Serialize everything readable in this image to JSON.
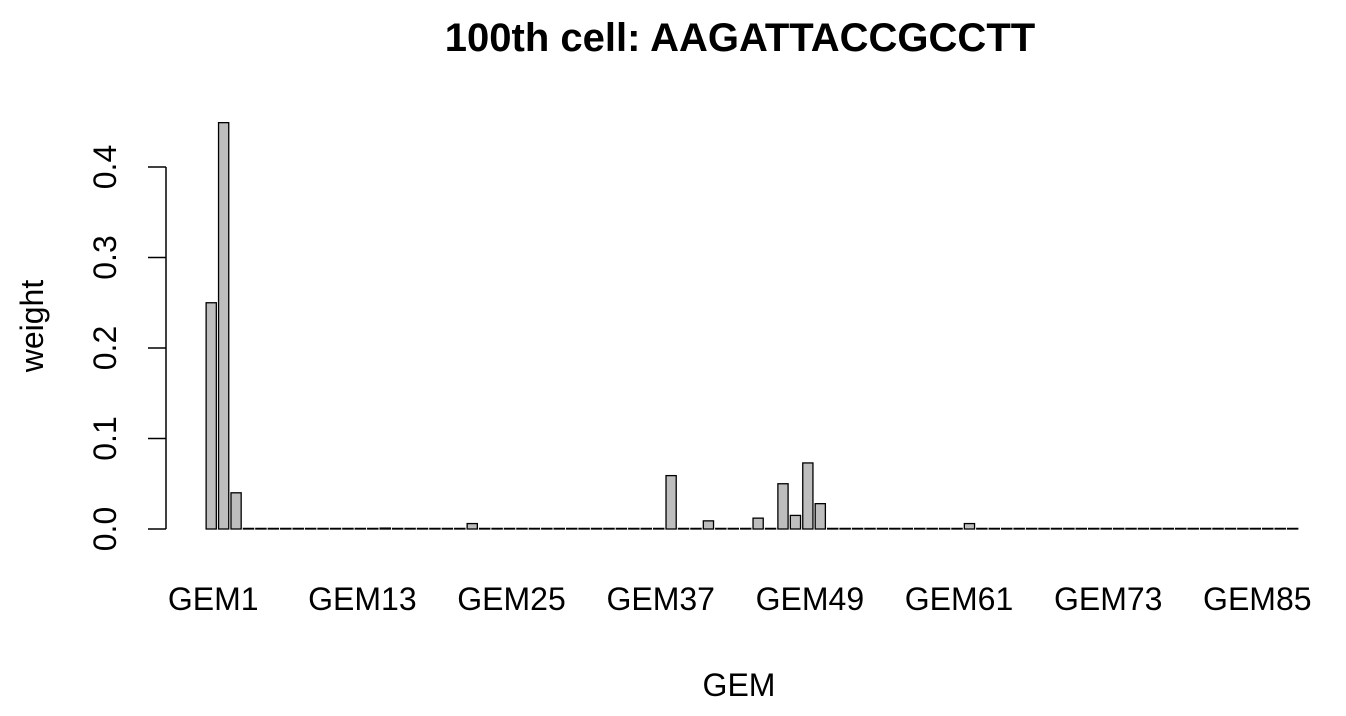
{
  "chart_data": {
    "type": "bar",
    "title": "100th cell: AAGATTACCGCCTT",
    "xlabel": "GEM",
    "ylabel": "weight",
    "ylim": [
      0,
      0.45
    ],
    "yticks": [
      "0.0",
      "0.1",
      "0.2",
      "0.3",
      "0.4"
    ],
    "ytick_values": [
      0,
      0.1,
      0.2,
      0.3,
      0.4
    ],
    "xtick_labels": [
      "GEM1",
      "GEM13",
      "GEM25",
      "GEM37",
      "GEM49",
      "GEM61",
      "GEM73",
      "GEM85"
    ],
    "xtick_indices": [
      0,
      12,
      24,
      36,
      48,
      60,
      72,
      84
    ],
    "bar_color": "#bebebe",
    "bar_edge_color": "#000000",
    "grid": false,
    "categories": [
      "GEM1",
      "GEM2",
      "GEM3",
      "GEM4",
      "GEM5",
      "GEM6",
      "GEM7",
      "GEM8",
      "GEM9",
      "GEM10",
      "GEM11",
      "GEM12",
      "GEM13",
      "GEM14",
      "GEM15",
      "GEM16",
      "GEM17",
      "GEM18",
      "GEM19",
      "GEM20",
      "GEM21",
      "GEM22",
      "GEM23",
      "GEM24",
      "GEM25",
      "GEM26",
      "GEM27",
      "GEM28",
      "GEM29",
      "GEM30",
      "GEM31",
      "GEM32",
      "GEM33",
      "GEM34",
      "GEM35",
      "GEM36",
      "GEM37",
      "GEM38",
      "GEM39",
      "GEM40",
      "GEM41",
      "GEM42",
      "GEM43",
      "GEM44",
      "GEM45",
      "GEM46",
      "GEM47",
      "GEM48",
      "GEM49",
      "GEM50",
      "GEM51",
      "GEM52",
      "GEM53",
      "GEM54",
      "GEM55",
      "GEM56",
      "GEM57",
      "GEM58",
      "GEM59",
      "GEM60",
      "GEM61",
      "GEM62",
      "GEM63",
      "GEM64",
      "GEM65",
      "GEM66",
      "GEM67",
      "GEM68",
      "GEM69",
      "GEM70",
      "GEM71",
      "GEM72",
      "GEM73",
      "GEM74",
      "GEM75",
      "GEM76",
      "GEM77",
      "GEM78",
      "GEM79",
      "GEM80",
      "GEM81",
      "GEM82",
      "GEM83",
      "GEM84",
      "GEM85",
      "GEM86",
      "GEM87",
      "GEM88"
    ],
    "values": [
      0.25,
      0.449,
      0.04,
      0,
      0,
      0,
      0,
      0,
      0,
      0,
      0,
      0,
      0,
      0,
      0.001,
      0,
      0,
      0,
      0,
      0,
      0,
      0.006,
      0,
      0,
      0,
      0,
      0,
      0,
      0,
      0,
      0,
      0,
      0,
      0,
      0,
      0,
      0,
      0.059,
      0,
      0,
      0.009,
      0,
      0,
      0,
      0.012,
      0,
      0.05,
      0.015,
      0.073,
      0.028,
      0,
      0,
      0,
      0,
      0,
      0,
      0,
      0,
      0,
      0,
      0,
      0.006,
      0,
      0,
      0,
      0,
      0,
      0,
      0,
      0,
      0,
      0,
      0,
      0,
      0,
      0,
      0,
      0,
      0,
      0,
      0,
      0,
      0,
      0,
      0,
      0,
      0,
      0
    ]
  }
}
